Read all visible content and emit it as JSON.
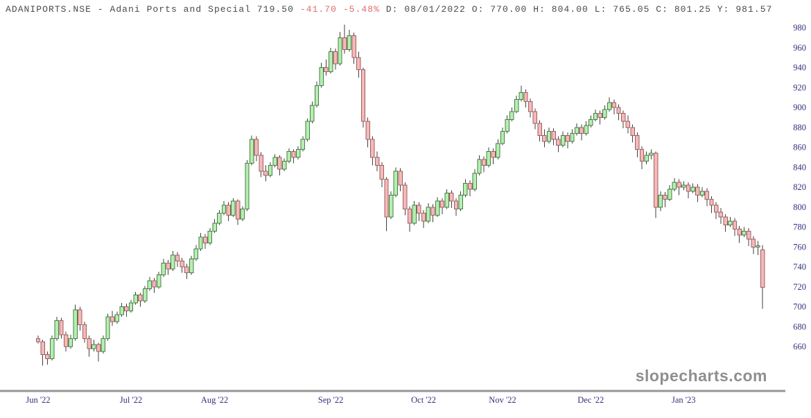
{
  "header": {
    "left": "ADANIPORTS.NSE - Adani Ports and Special 719.50",
    "change": "-41.70 -5.48%",
    "right": "D: 08/01/2022 O: 770.00 H: 804.00 L: 765.05 C: 801.25 Y: 981.57"
  },
  "watermark": "slopecharts.com",
  "colors": {
    "candle_up_fill": "#b4f0ae",
    "candle_up_border": "#4a7a4a",
    "candle_down_fill": "#f6b9b9",
    "candle_down_border": "#9c5f5f",
    "wick": "#3f3f3f",
    "axis_line": "#969696",
    "axis_label": "#31317e",
    "title_text": "#4a4a4a",
    "title_negative": "#e26b6b",
    "watermark_gray": "#8f8f8f"
  },
  "chart_data": {
    "type": "candlestick",
    "symbol": "ADANIPORTS.NSE",
    "title": "ADANIPORTS.NSE - Adani Ports and Special",
    "last_price": 719.5,
    "change": -41.7,
    "change_pct": -5.48,
    "hover_quote": {
      "date": "08/01/2022",
      "open": 770.0,
      "high": 804.0,
      "low": 765.05,
      "close": 801.25,
      "year_high": 981.57
    },
    "grid": false,
    "legend": false,
    "y_axis": {
      "side": "right",
      "min": 660,
      "max": 980,
      "step": 20,
      "tick_labels": [
        980,
        960,
        940,
        920,
        900,
        880,
        860,
        840,
        820,
        800,
        780,
        760,
        740,
        720,
        700,
        680,
        660
      ]
    },
    "x_axis": {
      "ticks": [
        {
          "label": "Jun '22",
          "day": 0
        },
        {
          "label": "Jul '22",
          "day": 20
        },
        {
          "label": "Aug '22",
          "day": 38
        },
        {
          "label": "Sep '22",
          "day": 63
        },
        {
          "label": "Oct '22",
          "day": 83
        },
        {
          "label": "Nov '22",
          "day": 100
        },
        {
          "label": "Dec '22",
          "day": 119
        },
        {
          "label": "Jan '23",
          "day": 139
        }
      ]
    },
    "candles_format": [
      "open",
      "high",
      "low",
      "close"
    ],
    "candles": [
      [
        668,
        671,
        663,
        665
      ],
      [
        665,
        667,
        641,
        652
      ],
      [
        652,
        655,
        642,
        648
      ],
      [
        648,
        671,
        646,
        668
      ],
      [
        668,
        690,
        666,
        686
      ],
      [
        686,
        689,
        668,
        672
      ],
      [
        672,
        675,
        655,
        660
      ],
      [
        660,
        672,
        658,
        668
      ],
      [
        668,
        702,
        666,
        697
      ],
      [
        697,
        700,
        676,
        682
      ],
      [
        682,
        685,
        664,
        668
      ],
      [
        668,
        671,
        650,
        658
      ],
      [
        658,
        667,
        655,
        662
      ],
      [
        662,
        664,
        645,
        655
      ],
      [
        655,
        671,
        653,
        668
      ],
      [
        668,
        693,
        666,
        690
      ],
      [
        690,
        696,
        681,
        685
      ],
      [
        685,
        695,
        683,
        692
      ],
      [
        692,
        704,
        690,
        700
      ],
      [
        700,
        703,
        690,
        696
      ],
      [
        696,
        707,
        694,
        704
      ],
      [
        704,
        715,
        702,
        712
      ],
      [
        712,
        714,
        700,
        706
      ],
      [
        706,
        721,
        704,
        718
      ],
      [
        718,
        730,
        716,
        726
      ],
      [
        726,
        729,
        714,
        720
      ],
      [
        720,
        735,
        718,
        732
      ],
      [
        732,
        748,
        730,
        744
      ],
      [
        744,
        747,
        732,
        738
      ],
      [
        738,
        756,
        736,
        752
      ],
      [
        752,
        755,
        740,
        746
      ],
      [
        746,
        749,
        734,
        740
      ],
      [
        740,
        743,
        728,
        734
      ],
      [
        734,
        751,
        732,
        748
      ],
      [
        748,
        762,
        746,
        758
      ],
      [
        758,
        774,
        756,
        770
      ],
      [
        770,
        773,
        758,
        764
      ],
      [
        764,
        779,
        762,
        776
      ],
      [
        776,
        788,
        774,
        784
      ],
      [
        784,
        797,
        782,
        794
      ],
      [
        794,
        806,
        792,
        802
      ],
      [
        802,
        805,
        786,
        792
      ],
      [
        792,
        809,
        790,
        806
      ],
      [
        806,
        808,
        782,
        788
      ],
      [
        788,
        801,
        786,
        798
      ],
      [
        798,
        847,
        796,
        844
      ],
      [
        844,
        872,
        842,
        868
      ],
      [
        868,
        871,
        846,
        852
      ],
      [
        852,
        855,
        830,
        836
      ],
      [
        836,
        842,
        826,
        832
      ],
      [
        832,
        845,
        830,
        842
      ],
      [
        842,
        853,
        840,
        850
      ],
      [
        850,
        852,
        832,
        838
      ],
      [
        838,
        849,
        836,
        846
      ],
      [
        846,
        859,
        844,
        856
      ],
      [
        856,
        858,
        844,
        850
      ],
      [
        850,
        861,
        848,
        858
      ],
      [
        858,
        871,
        856,
        868
      ],
      [
        868,
        889,
        866,
        886
      ],
      [
        886,
        906,
        884,
        902
      ],
      [
        902,
        926,
        900,
        922
      ],
      [
        922,
        945,
        920,
        940
      ],
      [
        940,
        948,
        932,
        936
      ],
      [
        936,
        960,
        934,
        956
      ],
      [
        956,
        959,
        938,
        944
      ],
      [
        944,
        976,
        942,
        970
      ],
      [
        970,
        983,
        954,
        958
      ],
      [
        958,
        978,
        956,
        972
      ],
      [
        972,
        975,
        944,
        950
      ],
      [
        950,
        956,
        930,
        938
      ],
      [
        938,
        940,
        880,
        886
      ],
      [
        886,
        890,
        860,
        868
      ],
      [
        868,
        871,
        842,
        850
      ],
      [
        850,
        856,
        836,
        842
      ],
      [
        842,
        845,
        820,
        828
      ],
      [
        828,
        830,
        776,
        790
      ],
      [
        790,
        816,
        788,
        812
      ],
      [
        812,
        840,
        810,
        836
      ],
      [
        836,
        839,
        816,
        822
      ],
      [
        822,
        825,
        792,
        798
      ],
      [
        798,
        801,
        775,
        784
      ],
      [
        784,
        806,
        782,
        802
      ],
      [
        802,
        805,
        786,
        794
      ],
      [
        794,
        797,
        779,
        786
      ],
      [
        786,
        804,
        784,
        800
      ],
      [
        800,
        803,
        785,
        792
      ],
      [
        792,
        810,
        790,
        806
      ],
      [
        806,
        809,
        793,
        800
      ],
      [
        800,
        818,
        798,
        814
      ],
      [
        814,
        817,
        799,
        806
      ],
      [
        806,
        809,
        791,
        798
      ],
      [
        798,
        816,
        796,
        812
      ],
      [
        812,
        828,
        810,
        824
      ],
      [
        824,
        827,
        811,
        818
      ],
      [
        818,
        838,
        816,
        834
      ],
      [
        834,
        852,
        832,
        848
      ],
      [
        848,
        851,
        835,
        842
      ],
      [
        842,
        860,
        840,
        856
      ],
      [
        856,
        859,
        843,
        850
      ],
      [
        850,
        868,
        848,
        864
      ],
      [
        864,
        880,
        862,
        876
      ],
      [
        876,
        892,
        874,
        888
      ],
      [
        888,
        900,
        886,
        896
      ],
      [
        896,
        912,
        894,
        908
      ],
      [
        908,
        922,
        906,
        915
      ],
      [
        915,
        918,
        900,
        906
      ],
      [
        906,
        909,
        890,
        896
      ],
      [
        896,
        899,
        878,
        884
      ],
      [
        884,
        887,
        866,
        872
      ],
      [
        872,
        878,
        860,
        866
      ],
      [
        866,
        880,
        864,
        876
      ],
      [
        876,
        879,
        862,
        868
      ],
      [
        868,
        871,
        855,
        862
      ],
      [
        862,
        876,
        860,
        872
      ],
      [
        872,
        875,
        859,
        866
      ],
      [
        866,
        878,
        864,
        874
      ],
      [
        874,
        884,
        872,
        880
      ],
      [
        880,
        883,
        867,
        874
      ],
      [
        874,
        886,
        872,
        882
      ],
      [
        882,
        892,
        880,
        888
      ],
      [
        888,
        898,
        886,
        894
      ],
      [
        894,
        897,
        883,
        890
      ],
      [
        890,
        902,
        888,
        898
      ],
      [
        898,
        910,
        896,
        905
      ],
      [
        905,
        908,
        893,
        900
      ],
      [
        900,
        903,
        887,
        894
      ],
      [
        894,
        897,
        879,
        886
      ],
      [
        886,
        892,
        874,
        880
      ],
      [
        880,
        883,
        865,
        872
      ],
      [
        872,
        875,
        850,
        858
      ],
      [
        858,
        861,
        838,
        846
      ],
      [
        846,
        856,
        843,
        852
      ],
      [
        852,
        858,
        848,
        854
      ],
      [
        854,
        856,
        789,
        800
      ],
      [
        800,
        816,
        796,
        812
      ],
      [
        812,
        815,
        800,
        808
      ],
      [
        808,
        822,
        806,
        818
      ],
      [
        818,
        829,
        816,
        825
      ],
      [
        825,
        828,
        812,
        820
      ],
      [
        820,
        826,
        817,
        822
      ],
      [
        822,
        825,
        809,
        816
      ],
      [
        816,
        824,
        814,
        820
      ],
      [
        820,
        823,
        805,
        812
      ],
      [
        812,
        820,
        810,
        816
      ],
      [
        816,
        819,
        801,
        808
      ],
      [
        808,
        811,
        794,
        802
      ],
      [
        802,
        805,
        788,
        795
      ],
      [
        795,
        799,
        783,
        790
      ],
      [
        790,
        793,
        775,
        782
      ],
      [
        782,
        790,
        780,
        786
      ],
      [
        786,
        789,
        771,
        778
      ],
      [
        778,
        781,
        764,
        772
      ],
      [
        772,
        780,
        770,
        776
      ],
      [
        776,
        779,
        761,
        768
      ],
      [
        768,
        771,
        753,
        760
      ],
      [
        760,
        766,
        752,
        761.2
      ],
      [
        757,
        762,
        698,
        719.5
      ]
    ]
  }
}
